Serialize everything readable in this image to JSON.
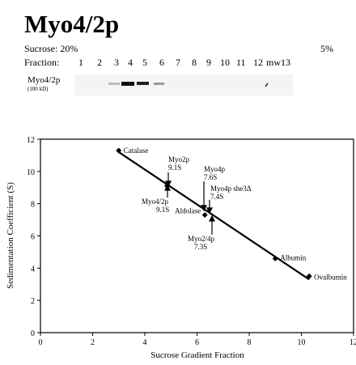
{
  "header": {
    "title": "Myo4/2p"
  },
  "gel": {
    "sucrose_label": "Sucrose: 20%",
    "end_label": "5%",
    "fraction_label": "Fraction:",
    "fractions": [
      "1",
      "2",
      "3",
      "4",
      "5",
      "6",
      "7",
      "8",
      "9",
      "10",
      "11",
      "12",
      "mw",
      "13"
    ],
    "protein": "Myo4/2p",
    "size": "(180 kD)"
  },
  "chart_data": {
    "type": "scatter",
    "xlabel": "Sucrose Gradient Fraction",
    "ylabel": "Sedimentation Coefficient (S)",
    "xlim": [
      0,
      12
    ],
    "ylim": [
      0,
      12
    ],
    "xticks": [
      0,
      2,
      4,
      6,
      8,
      10,
      12
    ],
    "yticks": [
      0,
      2,
      4,
      6,
      8,
      10,
      12
    ],
    "color": "#000000",
    "series": [
      {
        "x": [
          3,
          6.3,
          9,
          10.3
        ],
        "values": [
          11.3,
          7.3,
          4.6,
          3.5
        ],
        "point_labels": [
          "Catalase",
          "Aldolase",
          "Albumin",
          "Ovalbumin"
        ]
      },
      {
        "x": [
          4.85
        ],
        "values": [
          9.1
        ]
      }
    ],
    "fit_line": {
      "x": [
        3,
        10.3
      ],
      "values": [
        11.2,
        3.3
      ]
    },
    "annotations": [
      {
        "lines": [
          "Myo2p",
          "9.1S"
        ]
      },
      {
        "lines": [
          "Myo4/2p",
          "9.1S"
        ]
      },
      {
        "lines": [
          "Myo4p",
          "7.6S"
        ]
      },
      {
        "lines": [
          "Myo4p she3Δ",
          "7.4S"
        ]
      },
      {
        "lines": [
          "Myo2/4p",
          "7.3S"
        ]
      }
    ]
  }
}
